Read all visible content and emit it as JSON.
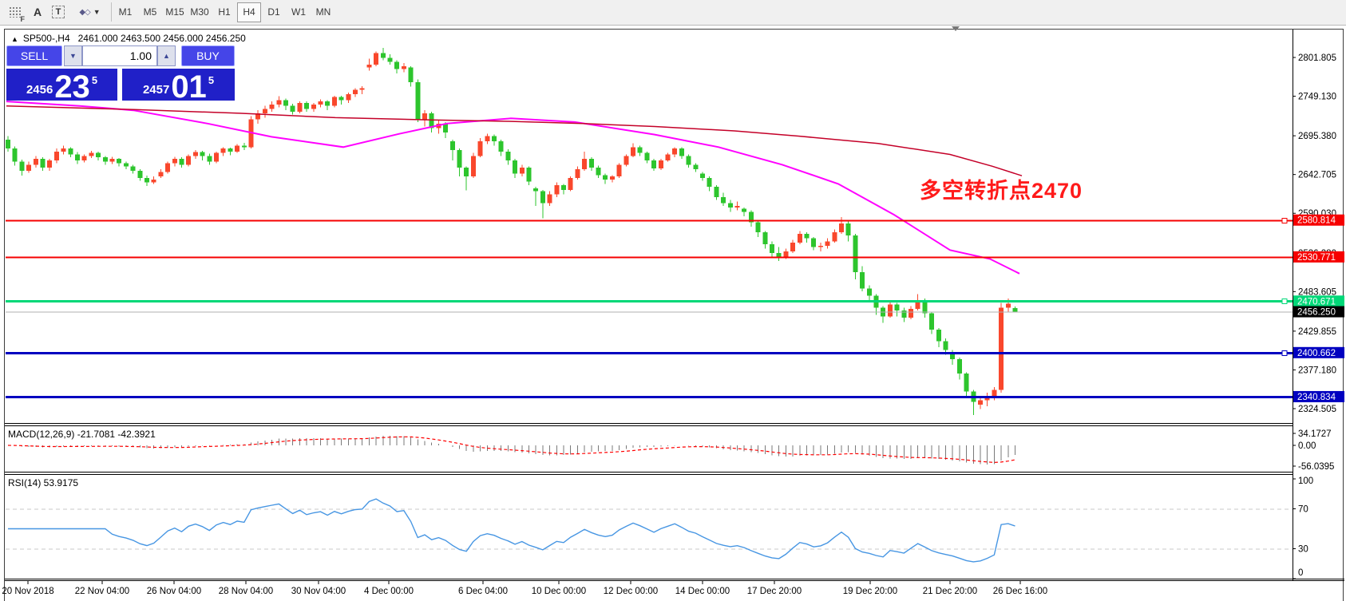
{
  "toolbar": {
    "icons": [
      {
        "name": "chart-foreground-icon",
        "glyph": "F"
      },
      {
        "name": "text-label-icon",
        "glyph": "A"
      },
      {
        "name": "text-box-icon",
        "glyph": "T"
      },
      {
        "name": "arrange-objects-icon",
        "glyph": "◆◇"
      },
      {
        "name": "dropdown-caret-icon",
        "glyph": "▼"
      }
    ],
    "timeframes": [
      {
        "label": "M1",
        "active": false
      },
      {
        "label": "M5",
        "active": false
      },
      {
        "label": "M15",
        "active": false
      },
      {
        "label": "M30",
        "active": false
      },
      {
        "label": "H1",
        "active": false
      },
      {
        "label": "H4",
        "active": true
      },
      {
        "label": "D1",
        "active": false
      },
      {
        "label": "W1",
        "active": false
      },
      {
        "label": "MN",
        "active": false
      }
    ]
  },
  "symbol_row": {
    "direction_icon": "▲",
    "symbol": "SP500-,H4",
    "ohlc": "2461.000 2463.500 2456.000 2456.250"
  },
  "trade_panel": {
    "sell_label": "SELL",
    "buy_label": "BUY",
    "volume": "1.00",
    "sell_price": {
      "prefix": "2456",
      "big": "23",
      "sup": "5"
    },
    "buy_price": {
      "prefix": "2457",
      "big": "01",
      "sup": "5"
    }
  },
  "annotation": {
    "text": "多空转折点2470",
    "color": "#ff1a1a"
  },
  "price_axis": [
    "2801.805",
    "2749.130",
    "2695.380",
    "2642.705",
    "2590.030",
    "2536.280",
    "2483.605",
    "2429.855",
    "2377.180",
    "2324.505"
  ],
  "hlines": [
    {
      "label": "2580.814",
      "value": 2580.814,
      "color": "#f60000",
      "width": 2,
      "marker": true
    },
    {
      "label": "2530.771",
      "value": 2530.771,
      "color": "#f60000",
      "width": 2,
      "marker": false
    },
    {
      "label": "2470.671",
      "value": 2470.671,
      "color": "#00d878",
      "width": 3,
      "marker": true
    },
    {
      "label": "2400.662",
      "value": 2400.662,
      "color": "#0000c0",
      "width": 3,
      "marker": true
    },
    {
      "label": "2340.834",
      "value": 2340.834,
      "color": "#0000c0",
      "width": 3,
      "marker": false
    }
  ],
  "current_price": {
    "label": "2456.250",
    "value": 2456.25,
    "line_color": "#b0b0b0",
    "badge_bg": "#000000"
  },
  "time_axis": [
    "20 Nov 2018",
    "22 Nov 04:00",
    "26 Nov 04:00",
    "28 Nov 04:00",
    "30 Nov 04:00",
    "4 Dec 00:00",
    "6 Dec 04:00",
    "10 Dec 00:00",
    "12 Dec 00:00",
    "14 Dec 00:00",
    "17 Dec 20:00",
    "19 Dec 20:00",
    "21 Dec 20:00",
    "26 Dec 16:00"
  ],
  "candles": [
    [
      2690,
      2695,
      2674,
      2678
    ],
    [
      2678,
      2681,
      2655,
      2660
    ],
    [
      2660,
      2663,
      2641,
      2648
    ],
    [
      2648,
      2660,
      2645,
      2656
    ],
    [
      2656,
      2668,
      2652,
      2664
    ],
    [
      2664,
      2666,
      2648,
      2652
    ],
    [
      2652,
      2664,
      2648,
      2662
    ],
    [
      2662,
      2678,
      2658,
      2674
    ],
    [
      2674,
      2682,
      2670,
      2678
    ],
    [
      2678,
      2680,
      2666,
      2670
    ],
    [
      2670,
      2673,
      2657,
      2662
    ],
    [
      2662,
      2670,
      2659,
      2668
    ],
    [
      2668,
      2675,
      2665,
      2672
    ],
    [
      2672,
      2674,
      2662,
      2666
    ],
    [
      2666,
      2668,
      2656,
      2660
    ],
    [
      2660,
      2667,
      2657,
      2664
    ],
    [
      2664,
      2665,
      2654,
      2658
    ],
    [
      2658,
      2660,
      2650,
      2654
    ],
    [
      2654,
      2656,
      2644,
      2648
    ],
    [
      2648,
      2650,
      2634,
      2638
    ],
    [
      2638,
      2641,
      2627,
      2632
    ],
    [
      2632,
      2640,
      2630,
      2636
    ],
    [
      2640,
      2650,
      2638,
      2646
    ],
    [
      2646,
      2660,
      2644,
      2658
    ],
    [
      2658,
      2667,
      2654,
      2664
    ],
    [
      2664,
      2666,
      2652,
      2656
    ],
    [
      2656,
      2670,
      2654,
      2668
    ],
    [
      2668,
      2676,
      2664,
      2673
    ],
    [
      2673,
      2675,
      2662,
      2668
    ],
    [
      2668,
      2671,
      2656,
      2660
    ],
    [
      2660,
      2674,
      2658,
      2672
    ],
    [
      2672,
      2680,
      2668,
      2678
    ],
    [
      2678,
      2679,
      2669,
      2674
    ],
    [
      2674,
      2684,
      2672,
      2682
    ],
    [
      2682,
      2686,
      2676,
      2680
    ],
    [
      2680,
      2722,
      2678,
      2718
    ],
    [
      2718,
      2730,
      2712,
      2726
    ],
    [
      2726,
      2736,
      2720,
      2732
    ],
    [
      2732,
      2742,
      2728,
      2738
    ],
    [
      2738,
      2749,
      2734,
      2744
    ],
    [
      2744,
      2746,
      2730,
      2736
    ],
    [
      2736,
      2739,
      2724,
      2728
    ],
    [
      2728,
      2742,
      2726,
      2740
    ],
    [
      2740,
      2742,
      2728,
      2732
    ],
    [
      2732,
      2740,
      2728,
      2738
    ],
    [
      2738,
      2745,
      2734,
      2742
    ],
    [
      2742,
      2744,
      2730,
      2736
    ],
    [
      2736,
      2750,
      2734,
      2748
    ],
    [
      2748,
      2750,
      2738,
      2744
    ],
    [
      2744,
      2754,
      2740,
      2752
    ],
    [
      2752,
      2760,
      2748,
      2758
    ],
    [
      2758,
      2763,
      2752,
      2760
    ],
    [
      2788,
      2800,
      2784,
      2792
    ],
    [
      2792,
      2810,
      2790,
      2808
    ],
    [
      2808,
      2815,
      2798,
      2801
    ],
    [
      2801,
      2806,
      2792,
      2796
    ],
    [
      2796,
      2798,
      2780,
      2786
    ],
    [
      2786,
      2794,
      2782,
      2790
    ],
    [
      2788,
      2790,
      2762,
      2768
    ],
    [
      2768,
      2772,
      2714,
      2718
    ],
    [
      2718,
      2730,
      2708,
      2726
    ],
    [
      2726,
      2728,
      2700,
      2706
    ],
    [
      2706,
      2716,
      2698,
      2712
    ],
    [
      2712,
      2714,
      2692,
      2700
    ],
    [
      2688,
      2690,
      2662,
      2676
    ],
    [
      2676,
      2678,
      2640,
      2652
    ],
    [
      2652,
      2654,
      2621,
      2640
    ],
    [
      2640,
      2672,
      2638,
      2668
    ],
    [
      2668,
      2692,
      2666,
      2688
    ],
    [
      2688,
      2698,
      2684,
      2695
    ],
    [
      2695,
      2697,
      2682,
      2688
    ],
    [
      2688,
      2690,
      2668,
      2674
    ],
    [
      2674,
      2677,
      2656,
      2662
    ],
    [
      2662,
      2664,
      2638,
      2644
    ],
    [
      2644,
      2656,
      2640,
      2652
    ],
    [
      2652,
      2654,
      2628,
      2633
    ],
    [
      2624,
      2626,
      2600,
      2620
    ],
    [
      2620,
      2622,
      2583,
      2604
    ],
    [
      2604,
      2620,
      2600,
      2616
    ],
    [
      2616,
      2632,
      2612,
      2628
    ],
    [
      2628,
      2630,
      2616,
      2622
    ],
    [
      2622,
      2640,
      2620,
      2638
    ],
    [
      2638,
      2654,
      2636,
      2650
    ],
    [
      2650,
      2674,
      2648,
      2664
    ],
    [
      2664,
      2666,
      2648,
      2652
    ],
    [
      2652,
      2655,
      2638,
      2642
    ],
    [
      2642,
      2644,
      2630,
      2636
    ],
    [
      2636,
      2642,
      2632,
      2640
    ],
    [
      2640,
      2658,
      2638,
      2656
    ],
    [
      2656,
      2670,
      2654,
      2668
    ],
    [
      2668,
      2685,
      2666,
      2680
    ],
    [
      2680,
      2682,
      2668,
      2672
    ],
    [
      2672,
      2674,
      2658,
      2662
    ],
    [
      2662,
      2664,
      2648,
      2651
    ],
    [
      2651,
      2664,
      2649,
      2662
    ],
    [
      2662,
      2672,
      2660,
      2670
    ],
    [
      2670,
      2680,
      2666,
      2678
    ],
    [
      2678,
      2680,
      2664,
      2668
    ],
    [
      2668,
      2670,
      2652,
      2656
    ],
    [
      2656,
      2658,
      2646,
      2650
    ],
    [
      2644,
      2646,
      2634,
      2638
    ],
    [
      2638,
      2640,
      2620,
      2626
    ],
    [
      2626,
      2628,
      2608,
      2612
    ],
    [
      2612,
      2618,
      2600,
      2604
    ],
    [
      2604,
      2608,
      2592,
      2598
    ],
    [
      2598,
      2606,
      2594,
      2600
    ],
    [
      2596,
      2598,
      2586,
      2592
    ],
    [
      2592,
      2594,
      2572,
      2578
    ],
    [
      2578,
      2580,
      2558,
      2564
    ],
    [
      2564,
      2566,
      2542,
      2548
    ],
    [
      2548,
      2552,
      2530,
      2536
    ],
    [
      2536,
      2544,
      2525,
      2530
    ],
    [
      2530,
      2542,
      2528,
      2538
    ],
    [
      2538,
      2554,
      2536,
      2550
    ],
    [
      2550,
      2566,
      2548,
      2562
    ],
    [
      2562,
      2564,
      2550,
      2556
    ],
    [
      2556,
      2558,
      2540,
      2544
    ],
    [
      2544,
      2550,
      2538,
      2546
    ],
    [
      2546,
      2556,
      2542,
      2552
    ],
    [
      2552,
      2568,
      2550,
      2564
    ],
    [
      2564,
      2585,
      2562,
      2576
    ],
    [
      2576,
      2580,
      2552,
      2560
    ],
    [
      2560,
      2562,
      2500,
      2510
    ],
    [
      2510,
      2518,
      2484,
      2488
    ],
    [
      2488,
      2492,
      2470,
      2478
    ],
    [
      2478,
      2480,
      2452,
      2462
    ],
    [
      2462,
      2464,
      2441,
      2450
    ],
    [
      2450,
      2470,
      2448,
      2466
    ],
    [
      2466,
      2468,
      2450,
      2458
    ],
    [
      2458,
      2462,
      2442,
      2448
    ],
    [
      2448,
      2464,
      2446,
      2460
    ],
    [
      2460,
      2480,
      2458,
      2472
    ],
    [
      2472,
      2474,
      2448,
      2454
    ],
    [
      2454,
      2456,
      2426,
      2432
    ],
    [
      2432,
      2434,
      2408,
      2416
    ],
    [
      2416,
      2420,
      2398,
      2404
    ],
    [
      2400,
      2404,
      2384,
      2392
    ],
    [
      2392,
      2394,
      2364,
      2372
    ],
    [
      2372,
      2374,
      2340,
      2348
    ],
    [
      2348,
      2350,
      2316,
      2334
    ],
    [
      2330,
      2342,
      2324,
      2336
    ],
    [
      2336,
      2346,
      2328,
      2342
    ],
    [
      2342,
      2354,
      2336,
      2350
    ],
    [
      2350,
      2468,
      2346,
      2462
    ],
    [
      2462,
      2474,
      2455,
      2467
    ],
    [
      2461,
      2463.5,
      2456,
      2456.25
    ]
  ],
  "ma_lines": [
    {
      "name": "ma-fast-magenta",
      "color": "#ff00ff",
      "width": 2,
      "points": [
        [
          8,
          2742
        ],
        [
          100,
          2736
        ],
        [
          167,
          2730
        ],
        [
          260,
          2712
        ],
        [
          340,
          2694
        ],
        [
          430,
          2680
        ],
        [
          500,
          2698
        ],
        [
          560,
          2712
        ],
        [
          640,
          2719
        ],
        [
          720,
          2714
        ],
        [
          820,
          2697
        ],
        [
          900,
          2680
        ],
        [
          980,
          2656
        ],
        [
          1050,
          2630
        ],
        [
          1120,
          2588
        ],
        [
          1190,
          2540
        ],
        [
          1240,
          2528
        ],
        [
          1277,
          2508
        ]
      ]
    },
    {
      "name": "ma-slow-darkred",
      "color": "#c40028",
      "width": 1.5,
      "points": [
        [
          8,
          2736
        ],
        [
          168,
          2731
        ],
        [
          300,
          2726
        ],
        [
          420,
          2720
        ],
        [
          540,
          2717
        ],
        [
          637,
          2715
        ],
        [
          730,
          2712
        ],
        [
          820,
          2708
        ],
        [
          920,
          2702
        ],
        [
          1000,
          2695
        ],
        [
          1100,
          2685
        ],
        [
          1190,
          2670
        ],
        [
          1243,
          2654
        ],
        [
          1280,
          2641
        ]
      ]
    }
  ],
  "macd": {
    "label": "MACD(12,26,9) -21.7081 -42.3921",
    "fast": 12,
    "slow": 26,
    "signal": 9,
    "axis": [
      "34.1727",
      "0.00",
      "-56.0395"
    ],
    "bar_color": "#7a7a7a",
    "signal_color": "#ff0000"
  },
  "rsi": {
    "label": "RSI(14) 53.9175",
    "period": 14,
    "axis": [
      "100",
      "70",
      "30",
      "0"
    ],
    "levels": [
      70,
      30
    ],
    "line_color": "#4796e3"
  },
  "colors": {
    "up": "#f9472c",
    "down": "#2dc52d"
  }
}
